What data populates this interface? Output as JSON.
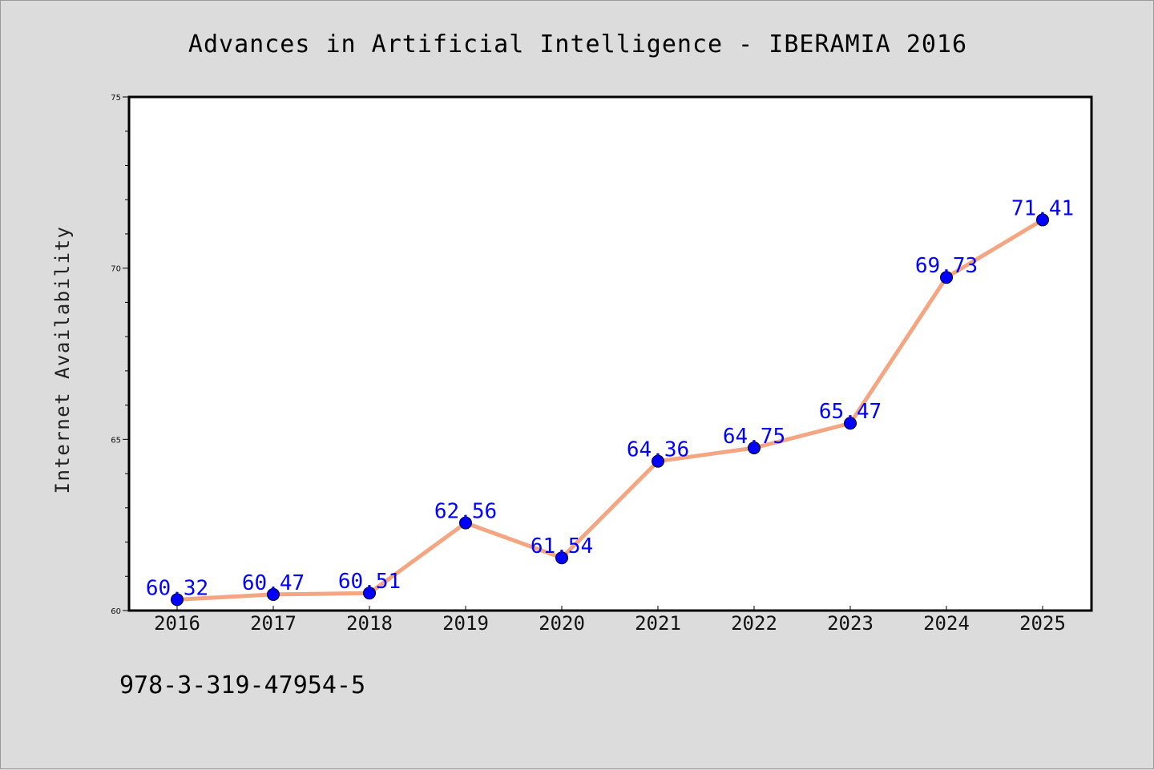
{
  "chart_data": {
    "type": "line",
    "title": "Advances in Artificial Intelligence - IBERAMIA 2016",
    "xlabel": "",
    "ylabel": "Internet Availability",
    "categories": [
      "2016",
      "2017",
      "2018",
      "2019",
      "2020",
      "2021",
      "2022",
      "2023",
      "2024",
      "2025"
    ],
    "series": [
      {
        "values": [
          60.32,
          60.47,
          60.51,
          62.56,
          61.54,
          64.36,
          64.75,
          65.47,
          69.73,
          71.41
        ],
        "data_labels": [
          "60.32",
          "60.47",
          "60.51",
          "62.56",
          "61.54",
          "64.36",
          "64.75",
          "65.47",
          "69.73",
          "71.41"
        ],
        "line_color": "#f4a582",
        "marker_color": "#0000ff"
      }
    ],
    "ylim": [
      60,
      75
    ],
    "yticks": [
      "60",
      "65",
      "70",
      "75"
    ],
    "grid": false,
    "legend": "none"
  },
  "footer": {
    "isbn": "978-3-319-47954-5"
  },
  "colors": {
    "background": "#dcdcdc",
    "plot_background": "#ffffff",
    "line": "#f4a582",
    "marker": "#0000ff",
    "data_label": "#0000ff"
  }
}
